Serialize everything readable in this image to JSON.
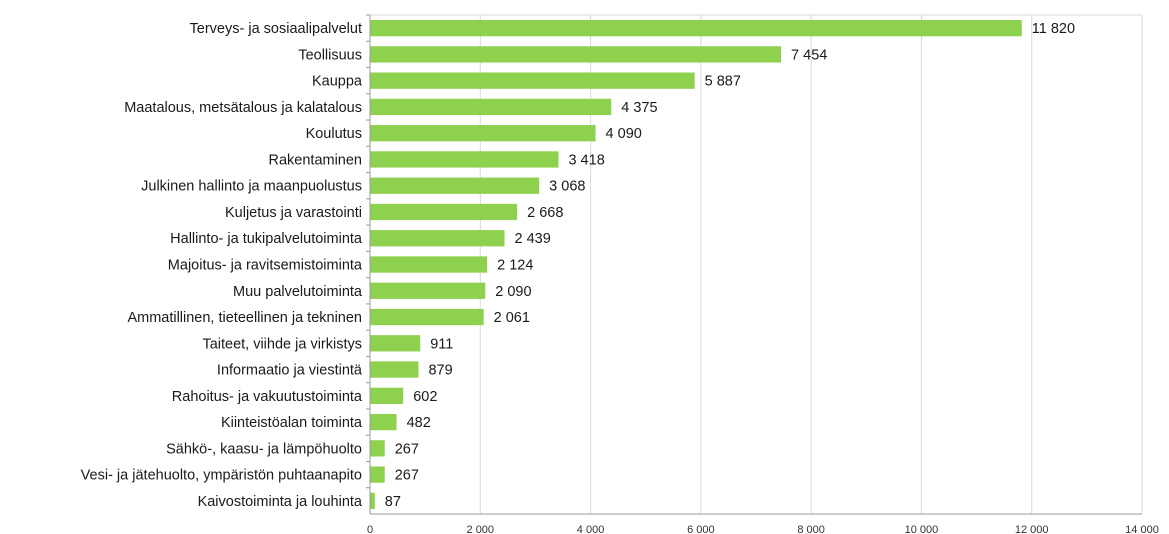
{
  "chart_data": {
    "type": "bar",
    "orientation": "horizontal",
    "title": "",
    "xlabel": "",
    "ylabel": "",
    "xlim": [
      0,
      14000
    ],
    "grid": true,
    "legend": "none",
    "bar_color": "#8dd14f",
    "categories": [
      "Terveys- ja sosiaalipalvelut",
      "Teollisuus",
      "Kauppa",
      "Maatalous, metsätalous ja kalatalous",
      "Koulutus",
      "Rakentaminen",
      "Julkinen hallinto ja maanpuolustus",
      "Kuljetus ja varastointi",
      "Hallinto- ja tukipalvelutoiminta",
      "Majoitus- ja ravitsemistoiminta",
      "Muu palvelutoiminta",
      "Ammatillinen, tieteellinen ja tekninen",
      "Taiteet, viihde ja virkistys",
      "Informaatio ja viestintä",
      "Rahoitus- ja vakuutustoiminta",
      "Kiinteistöalan toiminta",
      "Sähkö-, kaasu- ja lämpöhuolto",
      "Vesi- ja jätehuolto, ympäristön puhtaanapito",
      "Kaivostoiminta ja louhinta"
    ],
    "values": [
      11820,
      7454,
      5887,
      4375,
      4090,
      3418,
      3068,
      2668,
      2439,
      2124,
      2090,
      2061,
      911,
      879,
      602,
      482,
      267,
      267,
      87
    ],
    "value_labels": [
      "11 820",
      "7 454",
      "5 887",
      "4 375",
      "4 090",
      "3 418",
      "3 068",
      "2 668",
      "2 439",
      "2 124",
      "2 090",
      "2 061",
      "911",
      "879",
      "602",
      "482",
      "267",
      "267",
      "87"
    ],
    "ticks": [
      0,
      2000,
      4000,
      6000,
      8000,
      10000,
      12000,
      14000
    ],
    "tick_labels": [
      "0",
      "2 000",
      "4 000",
      "6 000",
      "8 000",
      "10 000",
      "12 000",
      "14 000"
    ]
  }
}
